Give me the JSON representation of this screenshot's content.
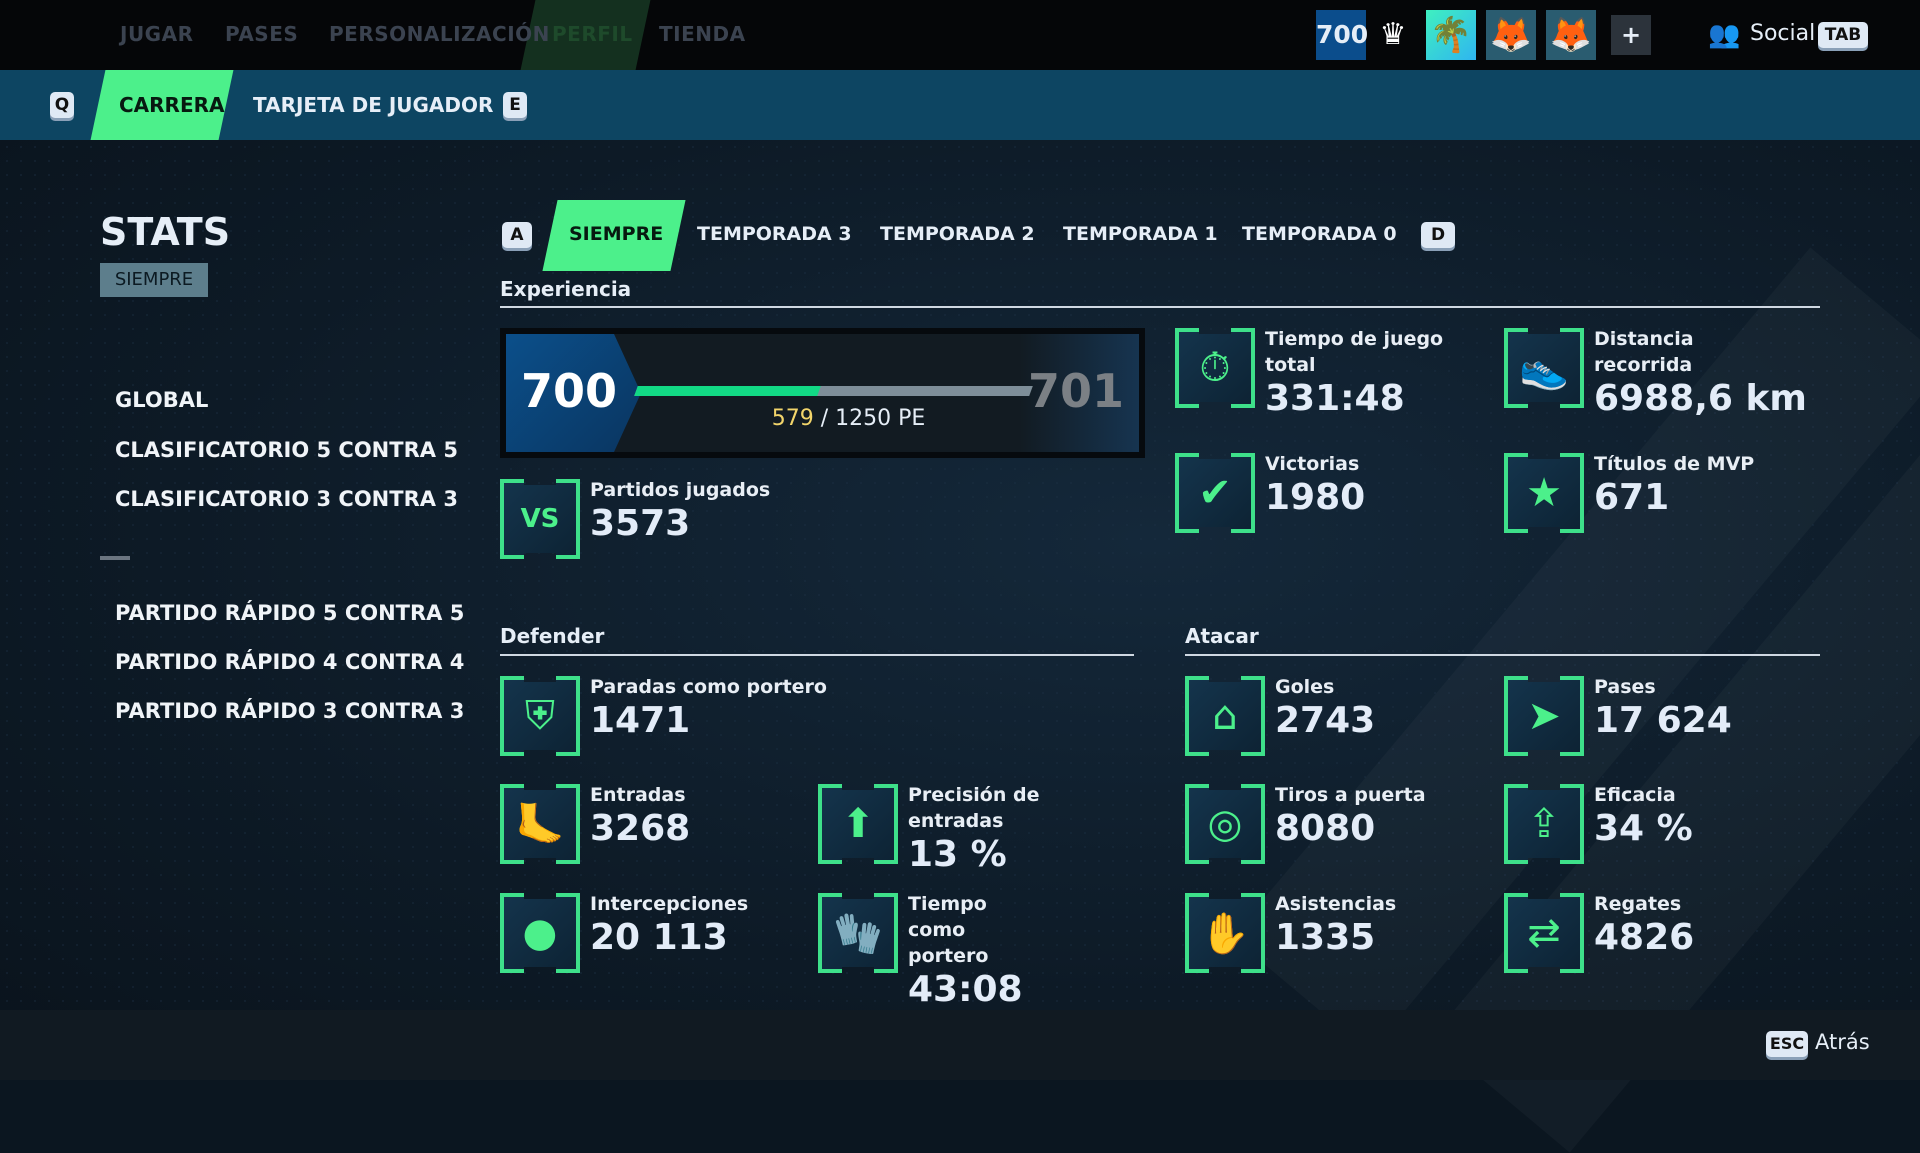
{
  "topnav": {
    "items": [
      "JUGAR",
      "PASES",
      "PERSONALIZACIÓN",
      "PERFIL",
      "TIENDA"
    ],
    "active": "PERFIL",
    "level_badge": "700",
    "social_label": "Social",
    "social_key": "TAB",
    "add_label": "+"
  },
  "subnav": {
    "key_left": "Q",
    "key_right": "E",
    "items": [
      "CARRERA",
      "TARJETA DE JUGADOR"
    ],
    "active": "CARRERA"
  },
  "sidebar": {
    "title": "STATS",
    "badge": "SIEMPRE",
    "items": [
      "GLOBAL",
      "CLASIFICATORIO 5 CONTRA 5",
      "CLASIFICATORIO 3 CONTRA 3",
      "PARTIDO RÁPIDO 5 CONTRA 5",
      "PARTIDO RÁPIDO 4 CONTRA 4",
      "PARTIDO RÁPIDO 3 CONTRA 3"
    ]
  },
  "tabs": {
    "key_left": "A",
    "key_right": "D",
    "items": [
      "SIEMPRE",
      "TEMPORADA 3",
      "TEMPORADA 2",
      "TEMPORADA 1",
      "TEMPORADA 0"
    ],
    "active": "SIEMPRE"
  },
  "experiencia": {
    "title": "Experiencia",
    "level": "700",
    "next_level": "701",
    "current": "579",
    "total": "/ 1250 PE",
    "progress": 0.463,
    "stats": [
      {
        "label": "Partidos jugados",
        "value": "3573",
        "icon": "versus-icon"
      },
      {
        "label": "Tiempo de juego total",
        "value": "331:48",
        "icon": "stopwatch-icon"
      },
      {
        "label": "Distancia recorrida",
        "value": "6988,6 km",
        "icon": "boot-icon"
      },
      {
        "label": "Victorias",
        "value": "1980",
        "icon": "checkmark-icon"
      },
      {
        "label": "Títulos de MVP",
        "value": "671",
        "icon": "star-icon"
      }
    ]
  },
  "defender": {
    "title": "Defender",
    "stats": [
      {
        "label": "Paradas como portero",
        "value": "1471",
        "icon": "goal-save-icon"
      },
      {
        "label": "Entradas",
        "value": "3268",
        "icon": "tackle-icon"
      },
      {
        "label": "Precisión de entradas",
        "value": "13 %",
        "icon": "arrow-up-icon"
      },
      {
        "label": "Intercepciones",
        "value": "20 113",
        "icon": "intercept-icon"
      },
      {
        "label": "Tiempo como portero",
        "value": "43:08",
        "icon": "gloves-icon"
      }
    ]
  },
  "atacar": {
    "title": "Atacar",
    "stats": [
      {
        "label": "Goles",
        "value": "2743",
        "icon": "goal-icon"
      },
      {
        "label": "Pases",
        "value": "17 624",
        "icon": "pass-icon"
      },
      {
        "label": "Tiros a puerta",
        "value": "8080",
        "icon": "target-icon"
      },
      {
        "label": "Eficacia",
        "value": "34 %",
        "icon": "efficiency-icon"
      },
      {
        "label": "Asistencias",
        "value": "1335",
        "icon": "hands-icon"
      },
      {
        "label": "Regates",
        "value": "4826",
        "icon": "dribble-icon"
      }
    ]
  },
  "footer": {
    "key": "ESC",
    "label": "Atrás"
  },
  "colors": {
    "accent": "#4cf08b",
    "xp_fill": "#12d985",
    "xp_current": "#f2d56b",
    "subbar": "#0d4562"
  }
}
